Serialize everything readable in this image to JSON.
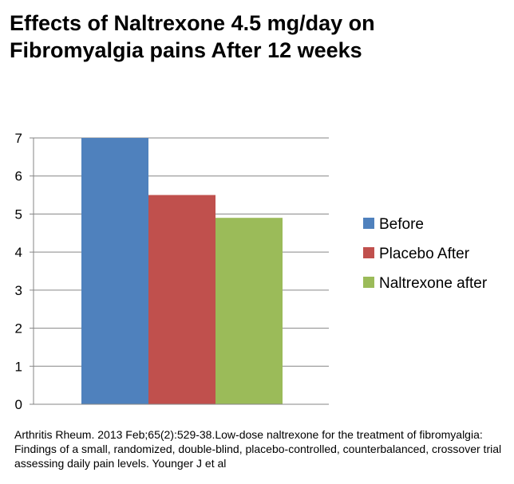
{
  "title": {
    "line1": "Effects of Naltrexone 4.5 mg/day on",
    "line2": "Fibromyalgia pains After 12 weeks"
  },
  "citation": "Arthritis Rheum. 2013 Feb;65(2):529-38.Low-dose naltrexone for the treatment of fibromyalgia: Findings of a small, randomized, double-blind, placebo-controlled, counterbalanced, crossover trial assessing daily pain levels. Younger J et al",
  "chart_data": {
    "type": "bar",
    "title": "Effects of Naltrexone 4.5 mg/day on Fibromyalgia pains After 12 weeks",
    "xlabel": "",
    "ylabel": "",
    "ylim": [
      0,
      7
    ],
    "yticks": [
      0,
      1,
      2,
      3,
      4,
      5,
      6,
      7
    ],
    "grid": true,
    "legend_position": "right",
    "categories": [
      ""
    ],
    "series": [
      {
        "name": "Before",
        "values": [
          7.0
        ],
        "color": "#4F81BD"
      },
      {
        "name": "Placebo After",
        "values": [
          5.5
        ],
        "color": "#C0504D"
      },
      {
        "name": "Naltrexone after",
        "values": [
          4.9
        ],
        "color": "#9BBB59"
      }
    ]
  }
}
